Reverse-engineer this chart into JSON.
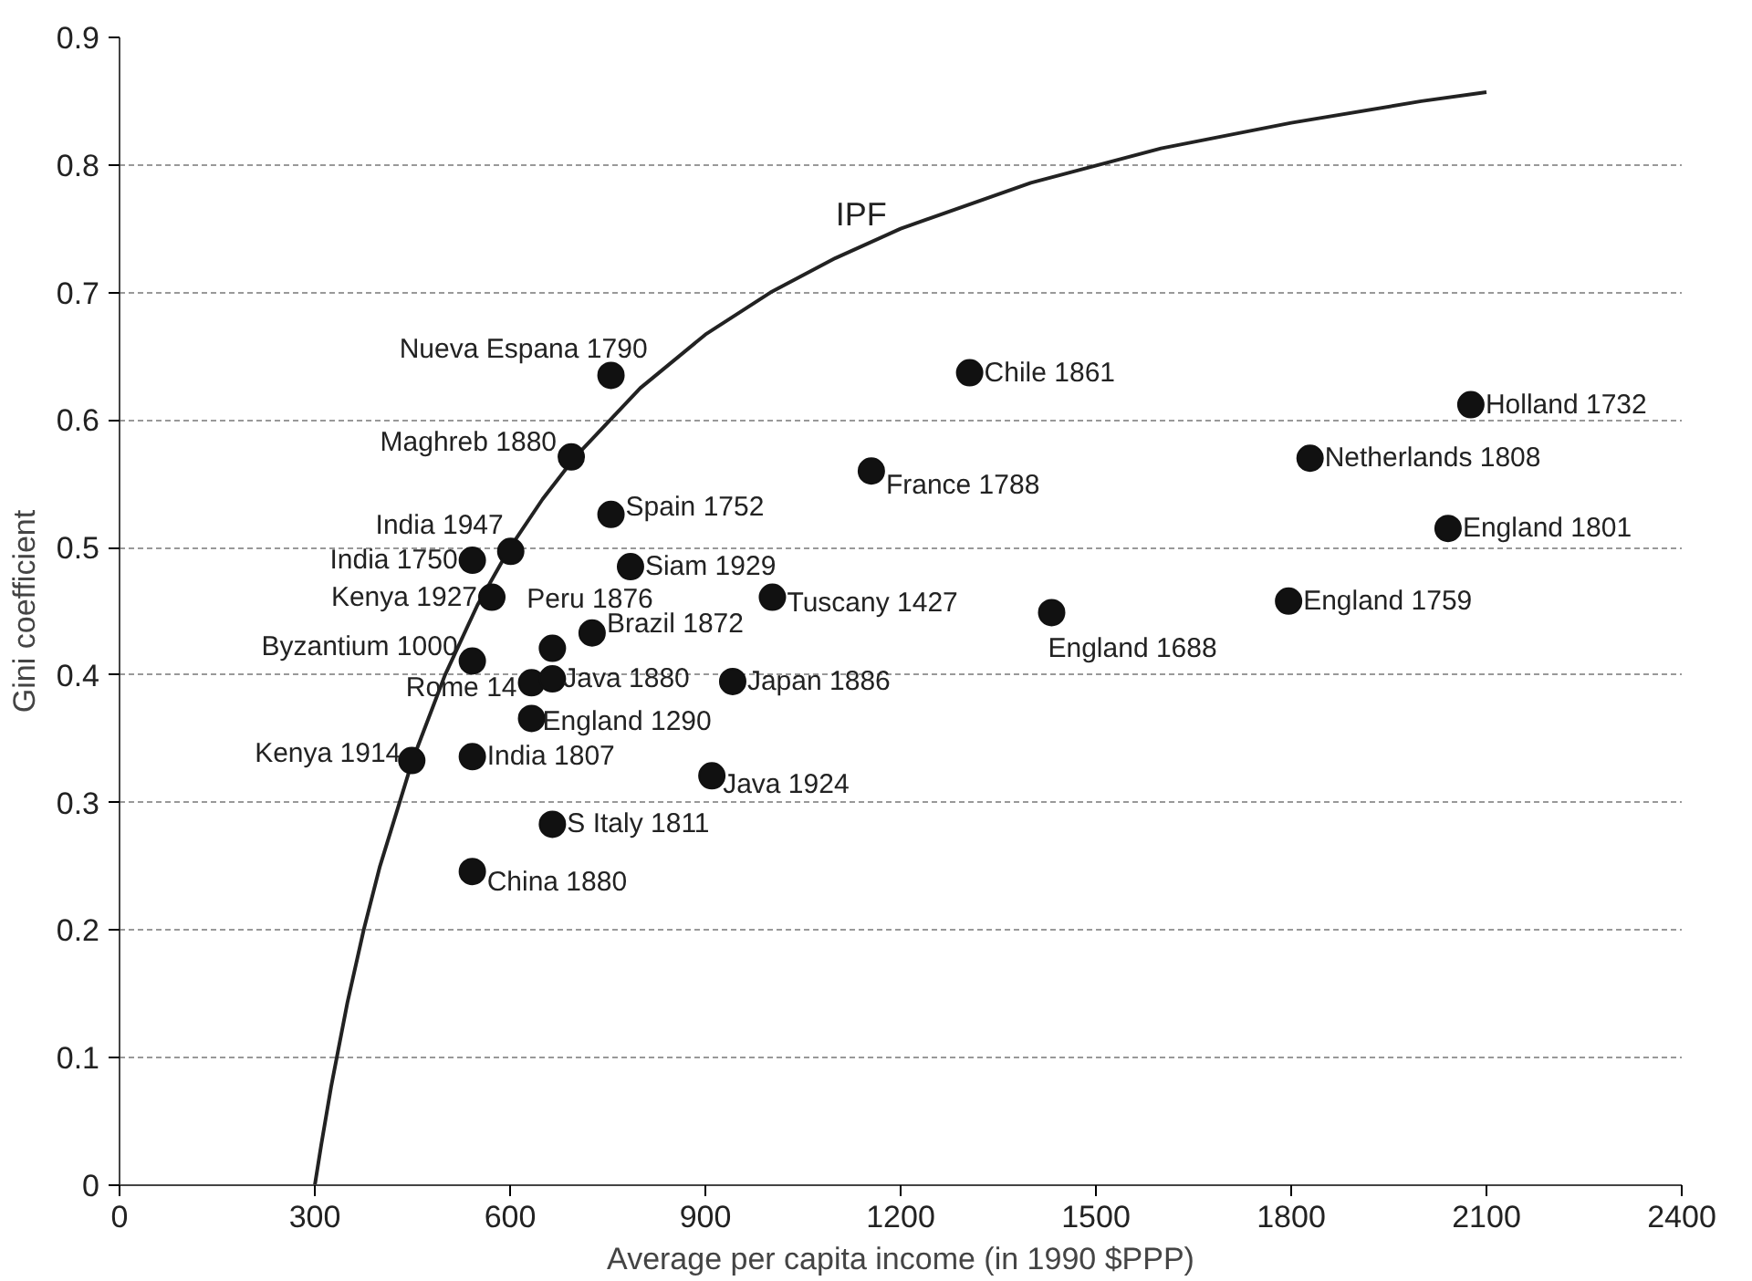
{
  "chart_data": {
    "type": "scatter",
    "xlabel": "Average per capita income (in 1990 $PPP)",
    "ylabel": "Gini coefficient",
    "xlim": [
      0,
      2400
    ],
    "xticks": [
      0,
      300,
      600,
      900,
      1200,
      1500,
      1800,
      2100,
      2400
    ],
    "ylim": [
      0,
      0.9
    ],
    "yticks": [
      0,
      0.1,
      0.2,
      0.3,
      0.4,
      0.5,
      0.6,
      0.7,
      0.8,
      0.9
    ],
    "grid": "y",
    "series": [
      {
        "name": "IPF",
        "type": "line",
        "color": "#222222",
        "line_style": "solid",
        "x": [
          300,
          310,
          325,
          350,
          375,
          400,
          450,
          500,
          550,
          600,
          650,
          700,
          800,
          900,
          1000,
          1100,
          1200,
          1400,
          1600,
          1800,
          2000,
          2100
        ],
        "values": [
          0,
          0.032,
          0.077,
          0.143,
          0.2,
          0.25,
          0.333,
          0.4,
          0.455,
          0.5,
          0.538,
          0.571,
          0.625,
          0.667,
          0.7,
          0.727,
          0.75,
          0.786,
          0.813,
          0.833,
          0.85,
          0.857
        ]
      },
      {
        "marker": "circle",
        "color": "#111111",
        "x": [
          755,
          694,
          755,
          601,
          542,
          572,
          665,
          785,
          726,
          542,
          633,
          665,
          942,
          633,
          449,
          542,
          910,
          665,
          542,
          1306,
          2076,
          1829,
          1155,
          2041,
          1003,
          1432,
          1796
        ],
        "values": [
          0.635,
          0.571,
          0.526,
          0.497,
          0.49,
          0.461,
          0.421,
          0.485,
          0.433,
          0.411,
          0.394,
          0.397,
          0.395,
          0.366,
          0.333,
          0.336,
          0.321,
          0.283,
          0.246,
          0.637,
          0.612,
          0.57,
          0.56,
          0.515,
          0.461,
          0.449,
          0.458
        ],
        "value_labels": [
          "Nueva Espana 1790",
          "Maghreb 1880",
          "Spain 1752",
          "India 1947",
          "India 1750",
          "Kenya 1927",
          "Peru 1876",
          "Siam 1929",
          "Brazil 1872",
          "Byzantium 1000",
          "Rome 14",
          "Java 1880",
          "Japan 1886",
          "England 1290",
          "Kenya 1914",
          "India 1807",
          "Java 1924",
          "S Italy 1811",
          "China 1880",
          "Chile 1861",
          "Holland 1732",
          "Netherlands 1808",
          "France 1788",
          "England 1801",
          "Tuscany 1427",
          "England 1688",
          "England 1759"
        ]
      }
    ]
  }
}
